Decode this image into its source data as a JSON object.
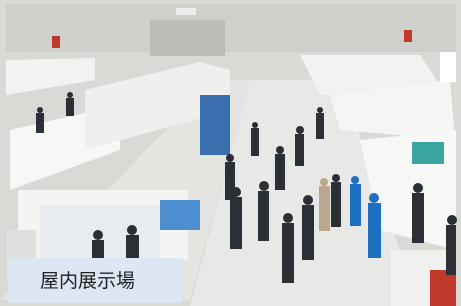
{
  "caption": "屋内展示場"
}
